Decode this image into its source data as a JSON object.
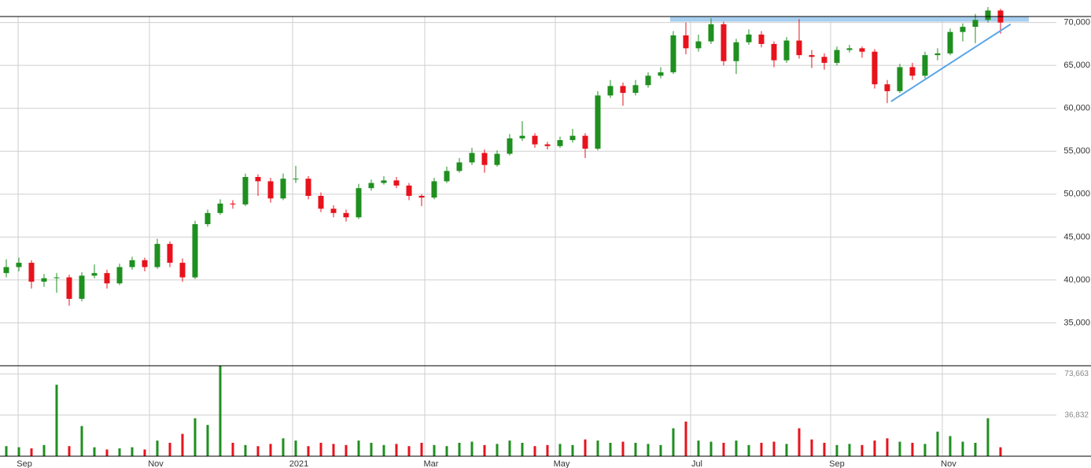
{
  "chart_data": [
    {
      "type": "candlestick",
      "categories": [
        null,
        null,
        null,
        null,
        null,
        null,
        null,
        null,
        null,
        null,
        null,
        null,
        null,
        null,
        null,
        null,
        null,
        null,
        null,
        null,
        null,
        null,
        null,
        null,
        null,
        null,
        null,
        null,
        null,
        null,
        null,
        null,
        null,
        null,
        null,
        null,
        null,
        null,
        null,
        null,
        null,
        null,
        null,
        null,
        null,
        null,
        null,
        null,
        null,
        null,
        null,
        null,
        null,
        null,
        null,
        null,
        null,
        null,
        null,
        null,
        null,
        null,
        null,
        null,
        null,
        null,
        null,
        null,
        null,
        null,
        null,
        null,
        null,
        null,
        null,
        null,
        null,
        null,
        null,
        null
      ],
      "open": [
        40800,
        41500,
        42000,
        39800,
        40200,
        40300,
        37800,
        40500,
        40800,
        39600,
        41500,
        42300,
        41500,
        44200,
        42000,
        40300,
        46500,
        47800,
        48900,
        48800,
        52000,
        51500,
        49500,
        51800,
        51800,
        49800,
        48300,
        47800,
        47300,
        50700,
        51300,
        51600,
        51000,
        49800,
        49600,
        51500,
        52700,
        53700,
        54800,
        53400,
        54700,
        56500,
        56800,
        55800,
        55600,
        56300,
        56800,
        55300,
        61500,
        62600,
        61800,
        62700,
        63800,
        64200,
        68500,
        67000,
        67800,
        69800,
        65500,
        67700,
        68600,
        67500,
        65600,
        67900,
        66200,
        66000,
        65300,
        66800,
        67000,
        66600,
        62800,
        62000,
        64800,
        63800,
        66200,
        66400,
        68900,
        69500,
        70300,
        71400
      ],
      "high": [
        42400,
        42600,
        42300,
        40700,
        40800,
        40600,
        40900,
        41800,
        41200,
        41900,
        42700,
        42600,
        44800,
        44500,
        42500,
        46900,
        48200,
        49400,
        49300,
        52400,
        52300,
        51900,
        52400,
        53300,
        52100,
        50200,
        48700,
        48200,
        51200,
        51700,
        52100,
        52000,
        51300,
        50000,
        51900,
        53200,
        54200,
        55400,
        55200,
        55100,
        57000,
        58500,
        57100,
        56100,
        56700,
        57600,
        57100,
        62000,
        63300,
        63000,
        63300,
        64200,
        64800,
        69000,
        70000,
        68600,
        70500,
        70100,
        68100,
        69200,
        69000,
        67800,
        68300,
        70400,
        66800,
        66400,
        67200,
        67400,
        67200,
        66900,
        63300,
        65200,
        65300,
        66600,
        67000,
        69300,
        69900,
        71000,
        71800,
        71600
      ],
      "low": [
        40300,
        41000,
        39000,
        39200,
        38500,
        37000,
        37500,
        40200,
        39000,
        39400,
        41200,
        41000,
        41300,
        41500,
        39800,
        40100,
        46200,
        47600,
        48300,
        48600,
        49800,
        49000,
        49300,
        51300,
        49400,
        47900,
        47300,
        46800,
        47100,
        50400,
        51100,
        50700,
        49300,
        48600,
        49400,
        51300,
        52500,
        53400,
        52500,
        53200,
        54500,
        56200,
        55400,
        55200,
        55400,
        56000,
        54200,
        55100,
        61200,
        60300,
        61500,
        62400,
        63500,
        64000,
        66300,
        66600,
        67500,
        65000,
        64000,
        67400,
        67100,
        64800,
        65300,
        65800,
        64700,
        64500,
        65000,
        66500,
        65900,
        62300,
        60600,
        61800,
        63300,
        63500,
        65600,
        66200,
        67800,
        67600,
        70000,
        68700
      ],
      "close": [
        41500,
        42000,
        39800,
        40200,
        40300,
        37800,
        40500,
        40800,
        39600,
        41500,
        42300,
        41500,
        44200,
        42000,
        40300,
        46500,
        47800,
        48900,
        48800,
        52000,
        51500,
        49500,
        51800,
        51800,
        49800,
        48300,
        47800,
        47300,
        50700,
        51300,
        51600,
        51000,
        49800,
        49600,
        51500,
        52700,
        53700,
        54800,
        53400,
        54700,
        56500,
        56800,
        55800,
        55600,
        56300,
        56800,
        55300,
        61500,
        62600,
        61800,
        62700,
        63800,
        64200,
        68500,
        67000,
        67800,
        69800,
        65500,
        67700,
        68600,
        67500,
        65600,
        67900,
        66200,
        66000,
        65300,
        66800,
        67000,
        66600,
        62800,
        62000,
        64800,
        63800,
        66200,
        66400,
        68900,
        69500,
        70300,
        71400,
        70000
      ],
      "up_color": "#1f8f1f",
      "down_color": "#e8121c",
      "xlim": [
        -0.5,
        83.44
      ],
      "ylim": [
        30000,
        70700
      ],
      "yticks": [
        {
          "value": 35000,
          "label": "35,000"
        },
        {
          "value": 40000,
          "label": "40,000"
        },
        {
          "value": 45000,
          "label": "45,000"
        },
        {
          "value": 50000,
          "label": "50,000"
        },
        {
          "value": 55000,
          "label": "55,000"
        },
        {
          "value": 60000,
          "label": "60,000"
        },
        {
          "value": 65000,
          "label": "65,000"
        },
        {
          "value": 70000,
          "label": "70,000"
        }
      ],
      "grid": true,
      "resistance_zone": {
        "xlim": [
          52.75,
          81.25
        ],
        "ylim": [
          70100,
          70700
        ],
        "color": "#a8cff0"
      },
      "trendline": {
        "x": [
          70.3,
          79.8
        ],
        "y": [
          60800,
          69800
        ],
        "color": "#5aa6e6"
      }
    },
    {
      "type": "bar",
      "values": [
        9000,
        8000,
        7000,
        10000,
        64000,
        9000,
        27000,
        8000,
        6000,
        7000,
        8000,
        6000,
        14000,
        12000,
        20000,
        34000,
        28000,
        81000,
        12000,
        10000,
        9000,
        11000,
        16000,
        14000,
        9000,
        12000,
        11000,
        10000,
        14000,
        12000,
        10000,
        11000,
        9000,
        12000,
        10000,
        9000,
        12000,
        13000,
        10000,
        11000,
        14000,
        12000,
        9000,
        10000,
        11000,
        10000,
        15000,
        14000,
        12000,
        13000,
        12000,
        11000,
        10000,
        25000,
        31000,
        14000,
        13000,
        12000,
        14000,
        10000,
        12000,
        13000,
        11000,
        25000,
        15000,
        12000,
        10000,
        11000,
        10000,
        14000,
        16000,
        13000,
        12000,
        11000,
        22000,
        18000,
        13000,
        12000,
        34000,
        8000
      ],
      "ylim": [
        0,
        81000
      ],
      "yticks": [
        {
          "value": 36832,
          "label": "36,832"
        },
        {
          "value": 73663,
          "label": "73,663"
        }
      ],
      "xticks": [
        {
          "value": 0.94,
          "label": "Sep"
        },
        {
          "value": 11.375,
          "label": "Nov"
        },
        {
          "value": 22.75,
          "label": "2021"
        },
        {
          "value": 33.25,
          "label": "Mar"
        },
        {
          "value": 43.625,
          "label": "May"
        },
        {
          "value": 54.375,
          "label": "Jul"
        },
        {
          "value": 65.5,
          "label": "Sep"
        },
        {
          "value": 74.375,
          "label": "Nov"
        }
      ]
    }
  ]
}
